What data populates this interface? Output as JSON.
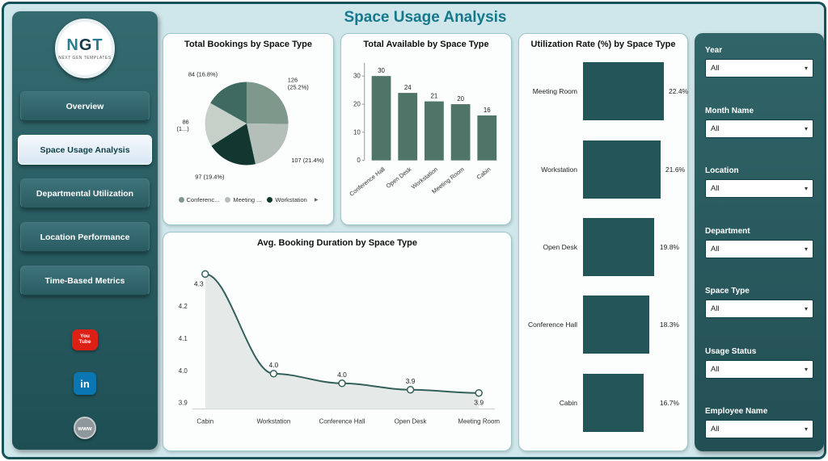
{
  "header": {
    "title": "Space Usage Analysis"
  },
  "sidebar": {
    "logo": {
      "letters": [
        {
          "ch": "N",
          "color": "#2a7d8c"
        },
        {
          "ch": "G",
          "color": "#143a47"
        },
        {
          "ch": "T",
          "color": "#2a7d8c"
        }
      ],
      "subtext": "NEXT GEN TEMPLATES"
    },
    "items": [
      {
        "label": "Overview",
        "active": false
      },
      {
        "label": "Space Usage Analysis",
        "active": true
      },
      {
        "label": "Departmental Utilization",
        "active": false
      },
      {
        "label": "Location Performance",
        "active": false
      },
      {
        "label": "Time-Based Metrics",
        "active": false
      }
    ],
    "social": {
      "youtube": [
        "You",
        "Tube"
      ],
      "linkedin": "in",
      "web": "www"
    }
  },
  "filters": {
    "groups": [
      {
        "label": "Year",
        "value": "All"
      },
      {
        "label": "Month Name",
        "value": "All"
      },
      {
        "label": "Location",
        "value": "All"
      },
      {
        "label": "Department",
        "value": "All"
      },
      {
        "label": "Space Type",
        "value": "All"
      },
      {
        "label": "Usage Status",
        "value": "All"
      },
      {
        "label": "Employee Name",
        "value": "All"
      }
    ]
  },
  "icons": {
    "chevron_down": "▾",
    "legend_more": "▶"
  },
  "chart_data": [
    {
      "id": "bookings_pie",
      "type": "pie",
      "title": "Total Bookings by Space Type",
      "slices": [
        {
          "value": 126,
          "lines": [
            "126",
            "(25.2%)"
          ],
          "color": "#7e988c"
        },
        {
          "value": 107,
          "lines": [
            "107 (21.4%)"
          ],
          "color": "#b5bfba"
        },
        {
          "value": 97,
          "lines": [
            "97 (19.4%)"
          ],
          "color": "#123730"
        },
        {
          "value": 86,
          "lines": [
            "86",
            "(1...)"
          ],
          "color": "#c6d0c9"
        },
        {
          "value": 84,
          "lines": [
            "84 (16.8%)"
          ],
          "color": "#3f6a61"
        }
      ],
      "legend": [
        {
          "label": "Conferenc...",
          "color": "#7e988c"
        },
        {
          "label": "Meeting ...",
          "color": "#b5bfba"
        },
        {
          "label": "Workstation",
          "color": "#123730"
        }
      ],
      "legend_more": "▶"
    },
    {
      "id": "available_bar",
      "type": "bar",
      "title": "Total Available by Space Type",
      "categories": [
        "Conference Hall",
        "Open Desk",
        "Workstation",
        "Meeting Room",
        "Cabin"
      ],
      "values": [
        30,
        24,
        21,
        20,
        16
      ],
      "y_ticks": [
        0,
        10,
        20,
        30
      ],
      "ylim": [
        0,
        33
      ],
      "bar_color": "#4f7468"
    },
    {
      "id": "utilization_hbar",
      "type": "bar",
      "orientation": "horizontal",
      "title": "Utilization Rate (%) by Space Type",
      "categories": [
        "Meeting Room",
        "Workstation",
        "Open Desk",
        "Conference Hall",
        "Cabin"
      ],
      "values": [
        22.4,
        21.6,
        19.8,
        18.3,
        16.7
      ],
      "value_labels": [
        "22.4%",
        "21.6%",
        "19.8%",
        "18.3%",
        "16.7%"
      ],
      "bar_color": "#245659"
    },
    {
      "id": "duration_line",
      "type": "line",
      "title": "Avg. Booking Duration by Space Type",
      "categories": [
        "Cabin",
        "Workstation",
        "Conference Hall",
        "Open Desk",
        "Meeting Room"
      ],
      "values": [
        4.3,
        3.99,
        3.96,
        3.94,
        3.93
      ],
      "data_labels": [
        "4.3",
        "4.0",
        "4.0",
        "3.9",
        "3.9"
      ],
      "y_ticks": [
        4.2,
        4.1,
        4.0,
        3.9
      ],
      "ylim": [
        3.88,
        4.33
      ],
      "line_color": "#32605a",
      "fill_color": "#e1e6e4"
    }
  ]
}
